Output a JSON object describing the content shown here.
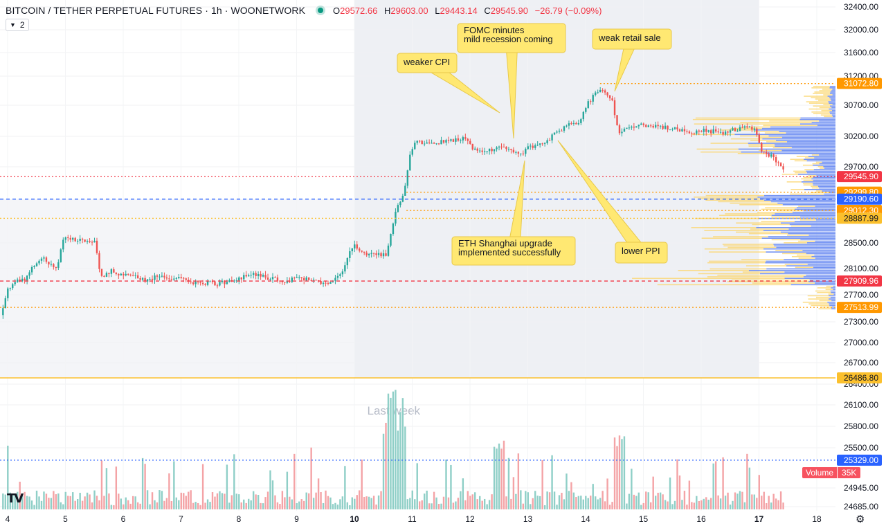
{
  "header": {
    "title": "BITCOIN / TETHER PERPETUAL FUTURES · 1h · WOONETWORK",
    "o_label": "O",
    "o_value": "29572.66",
    "h_label": "H",
    "h_value": "29603.00",
    "l_label": "L",
    "l_value": "29443.14",
    "c_label": "C",
    "c_value": "29545.90",
    "change": "−26.79 (−0.09%)"
  },
  "indicators_toggle": {
    "count": "2"
  },
  "volume_legend": {
    "label": "Volume",
    "value": "35K"
  },
  "colors": {
    "up": "#26a69a",
    "down": "#ef5350",
    "up_volume": "#8fcfc7",
    "down_volume": "#f4a3a6",
    "profile_blue": "#5b7ff0",
    "profile_yellow": "#fbd66e",
    "level_orange": "#ff9800",
    "current_red": "#f23645",
    "poc_red": "#f23645",
    "blue_line": "#2962ff",
    "yellow_line": "#fbc02d",
    "callout": "#ffe872"
  },
  "chart_data": {
    "type": "candlestick",
    "timeframe": "1h",
    "price_axis_labels": [
      "32400.00",
      "32000.00",
      "31600.00",
      "31200.00",
      "30700.00",
      "30200.00",
      "29700.00",
      "28500.00",
      "28100.00",
      "27700.00",
      "27300.00",
      "27000.00",
      "26700.00",
      "26400.00",
      "26100.00",
      "25800.00",
      "25500.00",
      "24945.00",
      "24685.00"
    ],
    "time_axis_labels": [
      "4",
      "5",
      "6",
      "7",
      "8",
      "9",
      "10",
      "11",
      "12",
      "13",
      "14",
      "15",
      "16",
      "17",
      "18"
    ],
    "price_levels": [
      {
        "price": 31072.8,
        "label": "31072.80",
        "color": "#ff9800",
        "style": "dotted"
      },
      {
        "price": 29545.9,
        "label": "29545.90",
        "color": "#f23645",
        "style": "dotted"
      },
      {
        "price": 29299.8,
        "label": "29299.80",
        "color": "#ff9800",
        "style": "dotted"
      },
      {
        "price": 29190.6,
        "label": "29190.60",
        "color": "#2962ff",
        "style": "dashed"
      },
      {
        "price": 29012.3,
        "label": "29012.30",
        "color": "#ff9800",
        "style": "dotted"
      },
      {
        "price": 28887.99,
        "label": "28887.99",
        "color": "#fbc02d",
        "style": "dotted"
      },
      {
        "price": 27909.96,
        "label": "27909.96",
        "color": "#f23645",
        "style": "dashed"
      },
      {
        "price": 27513.99,
        "label": "27513.99",
        "color": "#ff9800",
        "style": "dotted"
      },
      {
        "price": 26486.8,
        "label": "26486.80",
        "color": "#fbc02d",
        "style": "solid"
      },
      {
        "price": 25329.0,
        "label": "25329.00",
        "color": "#2962ff",
        "style": "dotted"
      }
    ],
    "range_label": "Last week",
    "annotations": [
      {
        "text_lines": [
          "weaker CPI"
        ]
      },
      {
        "text_lines": [
          "FOMC minutes",
          "mild recession coming"
        ]
      },
      {
        "text_lines": [
          "weak retail sale"
        ]
      },
      {
        "text_lines": [
          "ETH Shanghai upgrade",
          "implemented successfully"
        ]
      },
      {
        "text_lines": [
          "lower PPI"
        ]
      }
    ],
    "price_path": [
      [
        3.9,
        27400
      ],
      [
        4.0,
        27780
      ],
      [
        4.1,
        27880
      ],
      [
        4.3,
        27950
      ],
      [
        4.5,
        28180
      ],
      [
        4.6,
        28300
      ],
      [
        4.75,
        28150
      ],
      [
        4.85,
        28080
      ],
      [
        4.97,
        28610
      ],
      [
        5.1,
        28560
      ],
      [
        5.3,
        28540
      ],
      [
        5.5,
        28530
      ],
      [
        5.62,
        27950
      ],
      [
        5.8,
        28060
      ],
      [
        6.0,
        27990
      ],
      [
        6.2,
        27980
      ],
      [
        6.4,
        27910
      ],
      [
        6.6,
        28010
      ],
      [
        6.8,
        27960
      ],
      [
        7.0,
        27950
      ],
      [
        7.2,
        27900
      ],
      [
        7.4,
        27880
      ],
      [
        7.6,
        27870
      ],
      [
        7.8,
        27890
      ],
      [
        8.0,
        27950
      ],
      [
        8.2,
        28020
      ],
      [
        8.4,
        27980
      ],
      [
        8.6,
        27940
      ],
      [
        8.8,
        27900
      ],
      [
        9.0,
        27960
      ],
      [
        9.2,
        27930
      ],
      [
        9.4,
        27880
      ],
      [
        9.6,
        27880
      ],
      [
        9.8,
        28050
      ],
      [
        9.92,
        28400
      ],
      [
        10.0,
        28450
      ],
      [
        10.2,
        28330
      ],
      [
        10.4,
        28310
      ],
      [
        10.55,
        28300
      ],
      [
        10.65,
        28760
      ],
      [
        10.75,
        29100
      ],
      [
        10.85,
        29230
      ],
      [
        10.95,
        29830
      ],
      [
        11.05,
        30120
      ],
      [
        11.3,
        30080
      ],
      [
        11.6,
        30120
      ],
      [
        11.9,
        30180
      ],
      [
        12.1,
        29950
      ],
      [
        12.3,
        29960
      ],
      [
        12.5,
        30010
      ],
      [
        12.7,
        29980
      ],
      [
        12.85,
        29880
      ],
      [
        13.0,
        30020
      ],
      [
        13.2,
        30060
      ],
      [
        13.4,
        30180
      ],
      [
        13.55,
        30300
      ],
      [
        13.7,
        30380
      ],
      [
        13.9,
        30430
      ],
      [
        14.0,
        30680
      ],
      [
        14.15,
        30880
      ],
      [
        14.25,
        30960
      ],
      [
        14.45,
        30800
      ],
      [
        14.58,
        30250
      ],
      [
        14.75,
        30320
      ],
      [
        15.0,
        30380
      ],
      [
        15.2,
        30360
      ],
      [
        15.4,
        30340
      ],
      [
        15.6,
        30300
      ],
      [
        15.8,
        30250
      ],
      [
        16.0,
        30290
      ],
      [
        16.2,
        30280
      ],
      [
        16.4,
        30260
      ],
      [
        16.6,
        30310
      ],
      [
        16.8,
        30350
      ],
      [
        16.95,
        30280
      ],
      [
        17.05,
        29920
      ],
      [
        17.2,
        29880
      ],
      [
        17.4,
        29720
      ],
      [
        17.46,
        29546
      ]
    ]
  }
}
